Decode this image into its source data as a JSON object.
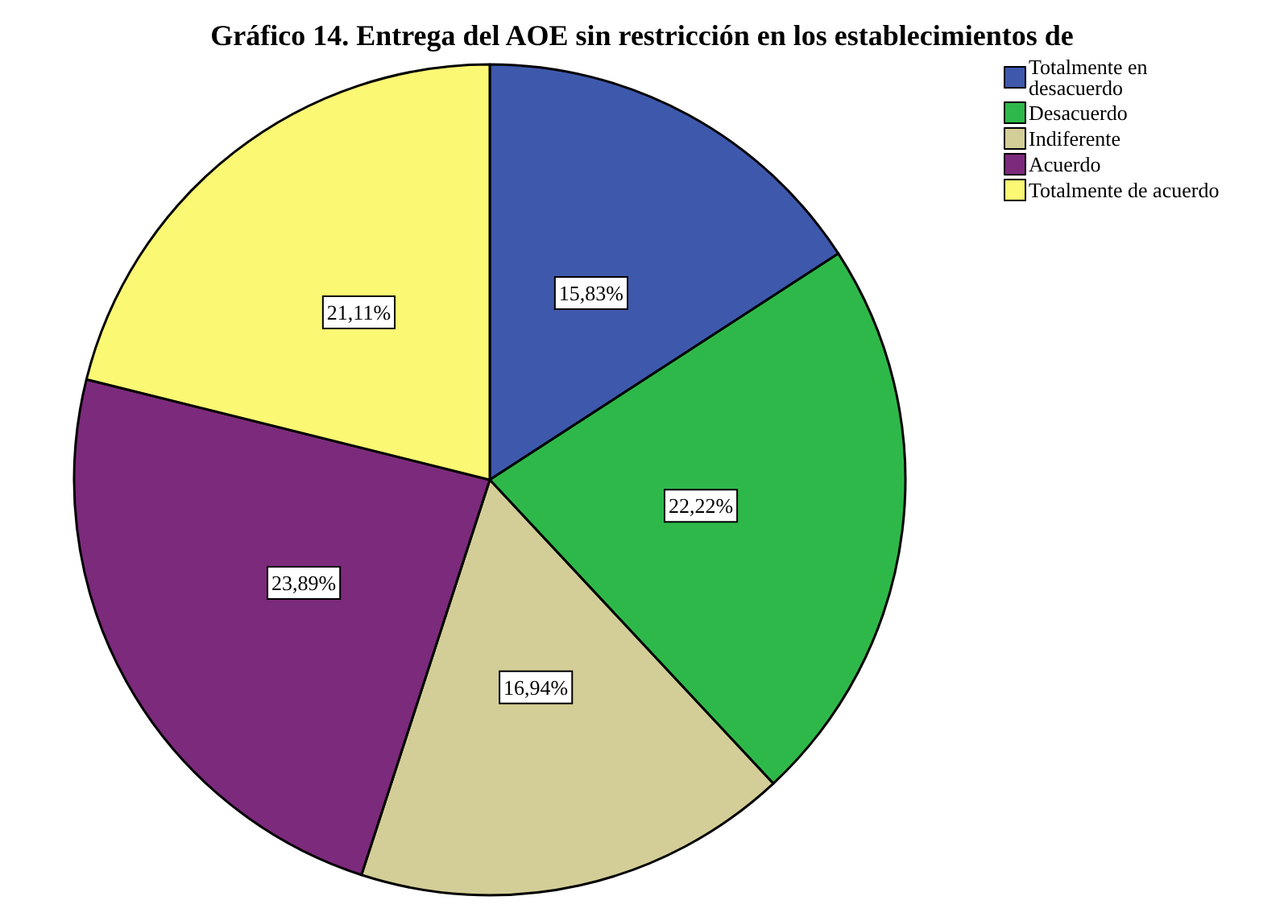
{
  "chart_data": {
    "type": "pie",
    "title": "Gráfico 14. Entrega del AOE sin restricción en los establecimientos de",
    "categories": [
      "Totalmente en\ndesacuerdo",
      "Desacuerdo",
      "Indiferente",
      "Acuerdo",
      "Totalmente de acuerdo"
    ],
    "values": [
      15.83,
      22.22,
      16.94,
      23.89,
      21.11
    ],
    "value_labels": [
      "15,83%",
      "22,22%",
      "16,94%",
      "23,89%",
      "21,11%"
    ],
    "colors": [
      "#3e58ac",
      "#2fb84a",
      "#d3ce97",
      "#7c2a7c",
      "#fbf874"
    ],
    "legend": "top right"
  }
}
